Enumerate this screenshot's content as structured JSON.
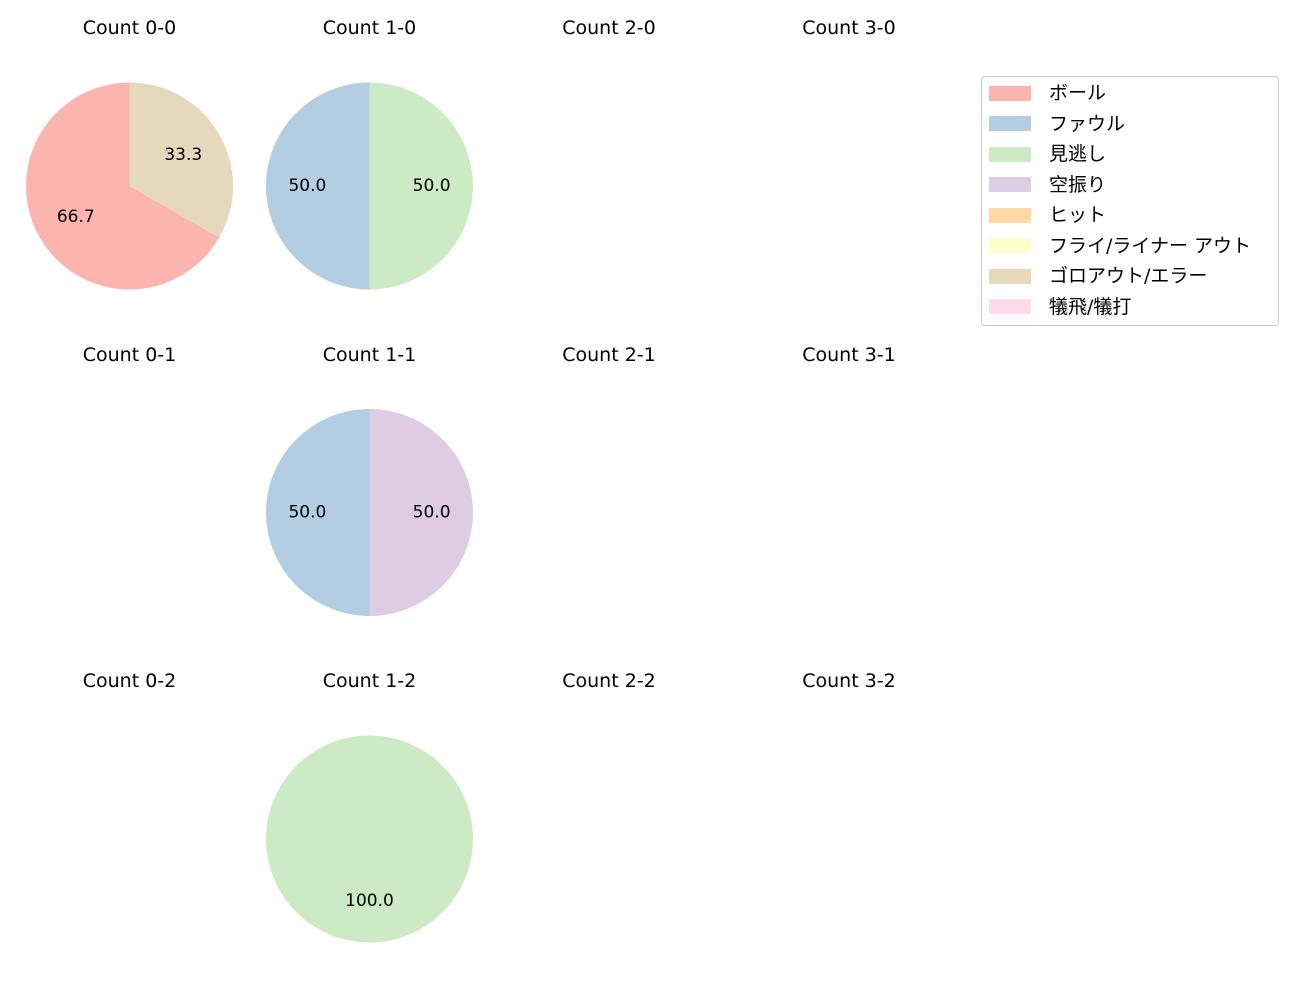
{
  "chart_data": {
    "type": "pie",
    "legend": {
      "placement": "top-right",
      "entries": [
        {
          "label": "ボール",
          "color": "#fbb4ae"
        },
        {
          "label": "ファウル",
          "color": "#b3cde3"
        },
        {
          "label": "見逃し",
          "color": "#ccebc5"
        },
        {
          "label": "空振り",
          "color": "#decbe4"
        },
        {
          "label": "ヒット",
          "color": "#fed9a6"
        },
        {
          "label": "フライ/ライナー アウト",
          "color": "#ffffcc"
        },
        {
          "label": "ゴロアウト/エラー",
          "color": "#e5d8bd"
        },
        {
          "label": "犠飛/犠打",
          "color": "#fddaec"
        }
      ]
    },
    "panels": [
      {
        "title": "Count 0-0",
        "slices": [
          {
            "category": "ボール",
            "value": 66.7
          },
          {
            "category": "ゴロアウト/エラー",
            "value": 33.3
          }
        ]
      },
      {
        "title": "Count 1-0",
        "slices": [
          {
            "category": "ファウル",
            "value": 50.0
          },
          {
            "category": "見逃し",
            "value": 50.0
          }
        ]
      },
      {
        "title": "Count 2-0",
        "slices": []
      },
      {
        "title": "Count 3-0",
        "slices": []
      },
      {
        "title": "Count 0-1",
        "slices": []
      },
      {
        "title": "Count 1-1",
        "slices": [
          {
            "category": "ファウル",
            "value": 50.0
          },
          {
            "category": "空振り",
            "value": 50.0
          }
        ]
      },
      {
        "title": "Count 2-1",
        "slices": []
      },
      {
        "title": "Count 3-1",
        "slices": []
      },
      {
        "title": "Count 0-2",
        "slices": []
      },
      {
        "title": "Count 1-2",
        "slices": [
          {
            "category": "見逃し",
            "value": 100.0
          }
        ]
      },
      {
        "title": "Count 2-2",
        "slices": []
      },
      {
        "title": "Count 3-2",
        "slices": []
      }
    ]
  }
}
